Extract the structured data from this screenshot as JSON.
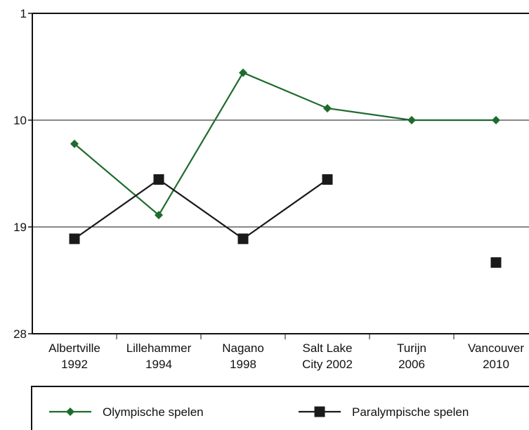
{
  "chart_data": {
    "type": "line",
    "categories": [
      [
        "Albertville",
        "1992"
      ],
      [
        "Lillehammer",
        "1994"
      ],
      [
        "Nagano",
        "1998"
      ],
      [
        "Salt Lake",
        "City 2002"
      ],
      [
        "Turijn",
        "2006"
      ],
      [
        "Vancouver",
        "2010"
      ]
    ],
    "series": [
      {
        "name": "Olympische spelen",
        "color": "#1e6b2e",
        "marker": "diamond",
        "values": [
          12,
          18,
          6,
          9,
          10,
          10
        ]
      },
      {
        "name": "Paralympische spelen",
        "color": "#1a1a1a",
        "marker": "square",
        "values": [
          20,
          15,
          20,
          15,
          null,
          22
        ]
      }
    ],
    "ylim": [
      1,
      28
    ],
    "yticks": [
      1,
      10,
      19,
      28
    ],
    "y_inverted": true,
    "grid": true,
    "legend": "bottom"
  }
}
